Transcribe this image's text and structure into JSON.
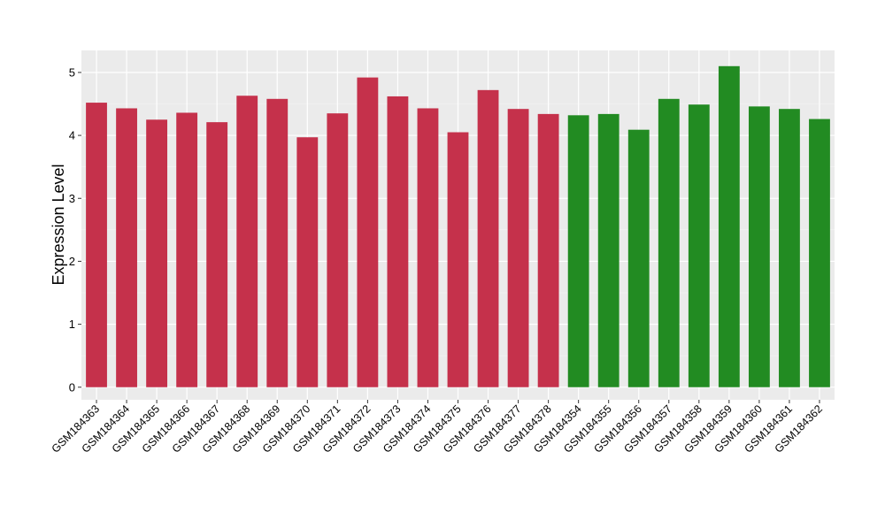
{
  "chart_data": {
    "type": "bar",
    "title": "",
    "xlabel": "",
    "ylabel": "Expression Level",
    "ylim": [
      -0.2,
      5.35
    ],
    "yticks": [
      0,
      1,
      2,
      3,
      4,
      5
    ],
    "grid": true,
    "legend": "none",
    "categories": [
      "GSM184363",
      "GSM184364",
      "GSM184365",
      "GSM184366",
      "GSM184367",
      "GSM184368",
      "GSM184369",
      "GSM184370",
      "GSM184371",
      "GSM184372",
      "GSM184373",
      "GSM184374",
      "GSM184375",
      "GSM184376",
      "GSM184377",
      "GSM184378",
      "GSM184354",
      "GSM184355",
      "GSM184356",
      "GSM184357",
      "GSM184358",
      "GSM184359",
      "GSM184360",
      "GSM184361",
      "GSM184362"
    ],
    "values": [
      4.52,
      4.43,
      4.25,
      4.36,
      4.21,
      4.63,
      4.58,
      3.97,
      4.35,
      4.92,
      4.62,
      4.43,
      4.05,
      4.72,
      4.42,
      4.34,
      4.32,
      4.34,
      4.09,
      4.58,
      4.49,
      5.1,
      4.46,
      4.42,
      4.26
    ],
    "groups": [
      "red",
      "red",
      "red",
      "red",
      "red",
      "red",
      "red",
      "red",
      "red",
      "red",
      "red",
      "red",
      "red",
      "red",
      "red",
      "red",
      "green",
      "green",
      "green",
      "green",
      "green",
      "green",
      "green",
      "green",
      "green"
    ],
    "colors": {
      "red": "#c5314b",
      "green": "#228b22",
      "panel": "#ebebeb",
      "grid_major": "#ffffff",
      "grid_minor": "#f5f5f5"
    }
  }
}
